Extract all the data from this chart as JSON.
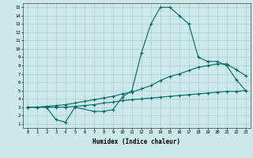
{
  "xlabel": "Humidex (Indice chaleur)",
  "bg_color": "#cce8e8",
  "grid_color": "#aacece",
  "line_color": "#006868",
  "xlim": [
    -0.5,
    23.5
  ],
  "ylim": [
    0.5,
    15.5
  ],
  "xticks": [
    0,
    1,
    2,
    3,
    4,
    5,
    6,
    7,
    8,
    9,
    10,
    11,
    12,
    13,
    14,
    15,
    16,
    17,
    18,
    19,
    20,
    21,
    22,
    23
  ],
  "yticks": [
    1,
    2,
    3,
    4,
    5,
    6,
    7,
    8,
    9,
    10,
    11,
    12,
    13,
    14,
    15
  ],
  "line1_x": [
    0,
    1,
    2,
    3,
    4,
    5,
    7,
    8,
    9,
    10,
    11,
    12,
    13,
    14,
    15,
    16,
    17,
    18,
    19,
    20,
    21,
    22,
    23
  ],
  "line1_y": [
    3,
    3,
    3,
    1.5,
    1.2,
    3,
    2.5,
    2.5,
    2.7,
    4.2,
    5.0,
    9.5,
    13,
    15,
    15,
    14,
    13,
    9,
    8.5,
    8.5,
    8.0,
    6.3,
    5.0
  ],
  "line2_x": [
    0,
    1,
    2,
    3,
    4,
    5,
    6,
    7,
    8,
    9,
    10,
    11,
    12,
    13,
    14,
    15,
    16,
    17,
    18,
    19,
    20,
    21,
    22,
    23
  ],
  "line2_y": [
    3.0,
    3.0,
    3.1,
    3.2,
    3.3,
    3.5,
    3.7,
    3.9,
    4.1,
    4.3,
    4.6,
    4.8,
    5.2,
    5.6,
    6.2,
    6.7,
    7.0,
    7.4,
    7.8,
    8.0,
    8.2,
    8.2,
    7.5,
    6.8
  ],
  "line3_x": [
    0,
    1,
    2,
    3,
    4,
    5,
    6,
    7,
    8,
    9,
    10,
    11,
    12,
    13,
    14,
    15,
    16,
    17,
    18,
    19,
    20,
    21,
    22,
    23
  ],
  "line3_y": [
    3.0,
    3.0,
    3.0,
    3.0,
    3.0,
    3.1,
    3.2,
    3.3,
    3.5,
    3.6,
    3.8,
    3.9,
    4.0,
    4.1,
    4.2,
    4.3,
    4.4,
    4.5,
    4.6,
    4.7,
    4.8,
    4.9,
    4.9,
    5.0
  ]
}
